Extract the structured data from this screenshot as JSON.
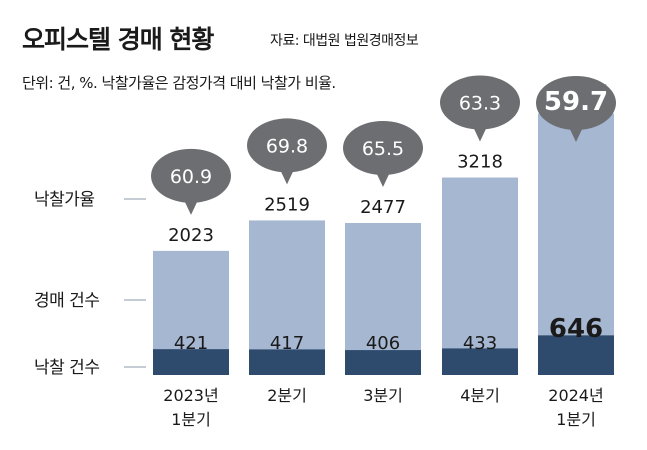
{
  "header": {
    "title": "오피스텔 경매 현황",
    "source": "자료: 대법원 법원경매정보",
    "unit": "단위: 건, %. 낙찰가율은 감정가격 대비 낙찰가 비율."
  },
  "colors": {
    "total_bar": "#a6b7d2",
    "win_bar": "#2e4b6e",
    "bubble": "#6d6e71",
    "row_line": "#8b98ad"
  },
  "chart_data": {
    "type": "bar",
    "categories": [
      [
        "2023년",
        "1분기"
      ],
      [
        "2분기"
      ],
      [
        "3분기"
      ],
      [
        "4분기"
      ],
      [
        "2024년",
        "1분기"
      ]
    ],
    "row_labels": [
      "낙찰가율",
      "경매 건수",
      "낙찰 건수"
    ],
    "series": [
      {
        "name": "경매 건수",
        "values": [
          2023,
          2519,
          2477,
          3218,
          4261
        ]
      },
      {
        "name": "낙찰 건수",
        "values": [
          421,
          417,
          406,
          433,
          646
        ]
      },
      {
        "name": "낙찰가율",
        "values": [
          60.9,
          69.8,
          65.5,
          63.3,
          59.7
        ]
      }
    ],
    "ylim": [
      0,
      4400
    ],
    "highlight_index": 4,
    "grid": false,
    "legend": "left"
  }
}
